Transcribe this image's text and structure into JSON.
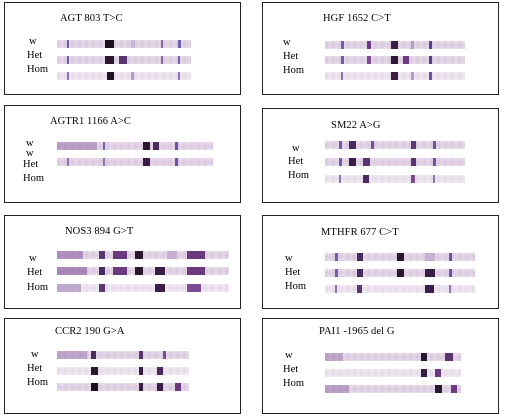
{
  "panels": [
    {
      "title": "AGT  803 T>C",
      "labels": [
        "w",
        "Het",
        "Hom"
      ]
    },
    {
      "title": "HGF    1652 C>T",
      "labels": [
        "w",
        "Het",
        "Hom"
      ]
    },
    {
      "title": "AGTR1   1166 A>C",
      "labels": [
        "w",
        "w",
        "Het",
        "Hom"
      ]
    },
    {
      "title": "SM22   A>G",
      "labels": [
        "w",
        "Het",
        "Hom"
      ]
    },
    {
      "title": "NOS3 894 G>T",
      "labels": [
        "w",
        "Het",
        "Hom"
      ]
    },
    {
      "title": "MTHFR  677 C>T",
      "labels": [
        "w",
        "Het",
        "Hom"
      ]
    },
    {
      "title": "CCR2  190 G>A",
      "labels": [
        "w",
        "Het",
        "Hom"
      ]
    },
    {
      "title": "PAI1  -1965 del G",
      "labels": [
        "w",
        "Het",
        "Hom"
      ]
    }
  ]
}
